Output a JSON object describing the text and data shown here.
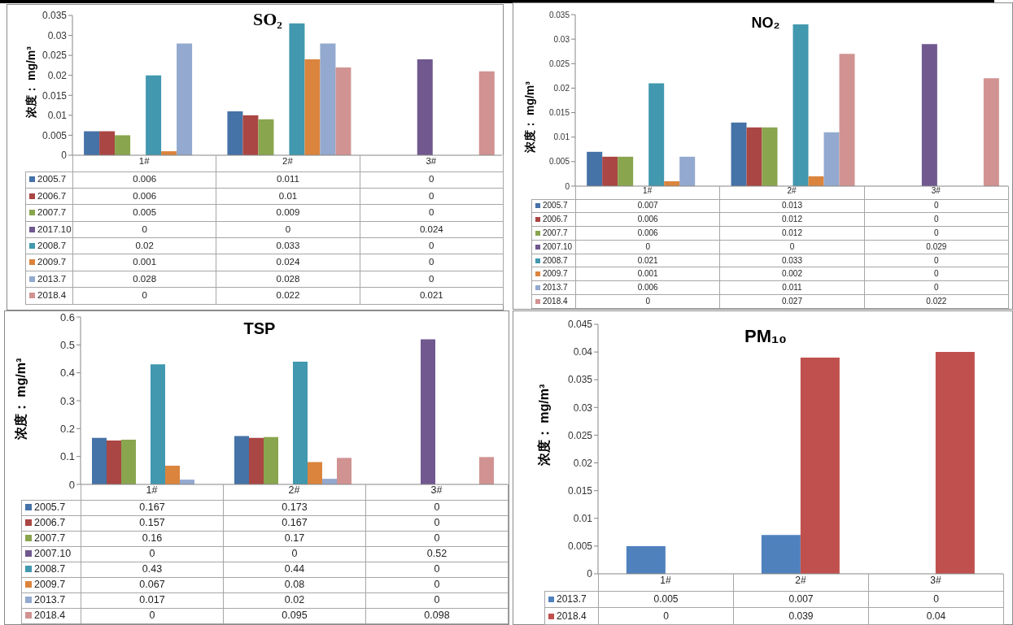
{
  "chart_data": [
    {
      "type": "bar",
      "title": "SO₂",
      "ylabel": "浓度： mg/m³",
      "categories": [
        "1#",
        "2#",
        "3#"
      ],
      "series": [
        {
          "name": "2005.7",
          "color": "#4572a7",
          "values": [
            0.006,
            0.011,
            0
          ]
        },
        {
          "name": "2006.7",
          "color": "#aa4643",
          "values": [
            0.006,
            0.01,
            0
          ]
        },
        {
          "name": "2007.7",
          "color": "#89a54e",
          "values": [
            0.005,
            0.009,
            0
          ]
        },
        {
          "name": "2017.10",
          "color": "#71588f",
          "values": [
            0,
            0,
            0.024
          ]
        },
        {
          "name": "2008.7",
          "color": "#4198af",
          "values": [
            0.02,
            0.033,
            0
          ]
        },
        {
          "name": "2009.7",
          "color": "#db843d",
          "values": [
            0.001,
            0.024,
            0
          ]
        },
        {
          "name": "2013.7",
          "color": "#93a9cf",
          "values": [
            0.028,
            0.028,
            0
          ]
        },
        {
          "name": "2018.4",
          "color": "#d19392",
          "values": [
            0,
            0.022,
            0.021
          ]
        }
      ],
      "ylim": [
        0,
        0.035
      ],
      "yticks": [
        0,
        0.005,
        0.01,
        0.015,
        0.02,
        0.025,
        0.03,
        0.035
      ],
      "legend": "bottom",
      "data_labels": true
    },
    {
      "type": "bar",
      "title": "NO₂",
      "ylabel": "浓度： mg/m³",
      "categories": [
        "1#",
        "2#",
        "3#"
      ],
      "series": [
        {
          "name": "2005.7",
          "color": "#4572a7",
          "values": [
            0.007,
            0.013,
            0
          ]
        },
        {
          "name": "2006.7",
          "color": "#aa4643",
          "values": [
            0.006,
            0.012,
            0
          ]
        },
        {
          "name": "2007.7",
          "color": "#89a54e",
          "values": [
            0.006,
            0.012,
            0
          ]
        },
        {
          "name": "2007.10",
          "color": "#71588f",
          "values": [
            0,
            0,
            0.029
          ]
        },
        {
          "name": "2008.7",
          "color": "#4198af",
          "values": [
            0.021,
            0.033,
            0
          ]
        },
        {
          "name": "2009.7",
          "color": "#db843d",
          "values": [
            0.001,
            0.002,
            0
          ]
        },
        {
          "name": "2013.7",
          "color": "#93a9cf",
          "values": [
            0.006,
            0.011,
            0
          ]
        },
        {
          "name": "2018.4",
          "color": "#d19392",
          "values": [
            0,
            0.027,
            0.022
          ]
        }
      ],
      "ylim": [
        0,
        0.035
      ],
      "yticks": [
        0,
        0.005,
        0.01,
        0.015,
        0.02,
        0.025,
        0.03,
        0.035
      ],
      "legend": "bottom",
      "data_labels": true
    },
    {
      "type": "bar",
      "title": "TSP",
      "ylabel": "浓度： mg/m³",
      "categories": [
        "1#",
        "2#",
        "3#"
      ],
      "series": [
        {
          "name": "2005.7",
          "color": "#4572a7",
          "values": [
            0.167,
            0.173,
            0
          ]
        },
        {
          "name": "2006.7",
          "color": "#aa4643",
          "values": [
            0.157,
            0.167,
            0
          ]
        },
        {
          "name": "2007.7",
          "color": "#89a54e",
          "values": [
            0.16,
            0.17,
            0
          ]
        },
        {
          "name": "2007.10",
          "color": "#71588f",
          "values": [
            0,
            0,
            0.52
          ]
        },
        {
          "name": "2008.7",
          "color": "#4198af",
          "values": [
            0.43,
            0.44,
            0
          ]
        },
        {
          "name": "2009.7",
          "color": "#db843d",
          "values": [
            0.067,
            0.08,
            0
          ]
        },
        {
          "name": "2013.7",
          "color": "#93a9cf",
          "values": [
            0.017,
            0.02,
            0
          ]
        },
        {
          "name": "2018.4",
          "color": "#d19392",
          "values": [
            0,
            0.095,
            0.098
          ]
        }
      ],
      "ylim": [
        0,
        0.6
      ],
      "yticks": [
        0,
        0.1,
        0.2,
        0.3,
        0.4,
        0.5,
        0.6
      ],
      "legend": "bottom",
      "data_labels": true
    },
    {
      "type": "bar",
      "title": "PM₁₀",
      "ylabel": "浓度： mg/m³",
      "categories": [
        "1#",
        "2#",
        "3#"
      ],
      "series": [
        {
          "name": "2013.7",
          "color": "#4f81bd",
          "values": [
            0.005,
            0.007,
            0
          ]
        },
        {
          "name": "2018.4",
          "color": "#c0504d",
          "values": [
            0,
            0.039,
            0.04
          ]
        }
      ],
      "ylim": [
        0,
        0.045
      ],
      "yticks": [
        0,
        0.005,
        0.01,
        0.015,
        0.02,
        0.025,
        0.03,
        0.035,
        0.04,
        0.045
      ],
      "legend": "bottom",
      "data_labels": true
    }
  ]
}
